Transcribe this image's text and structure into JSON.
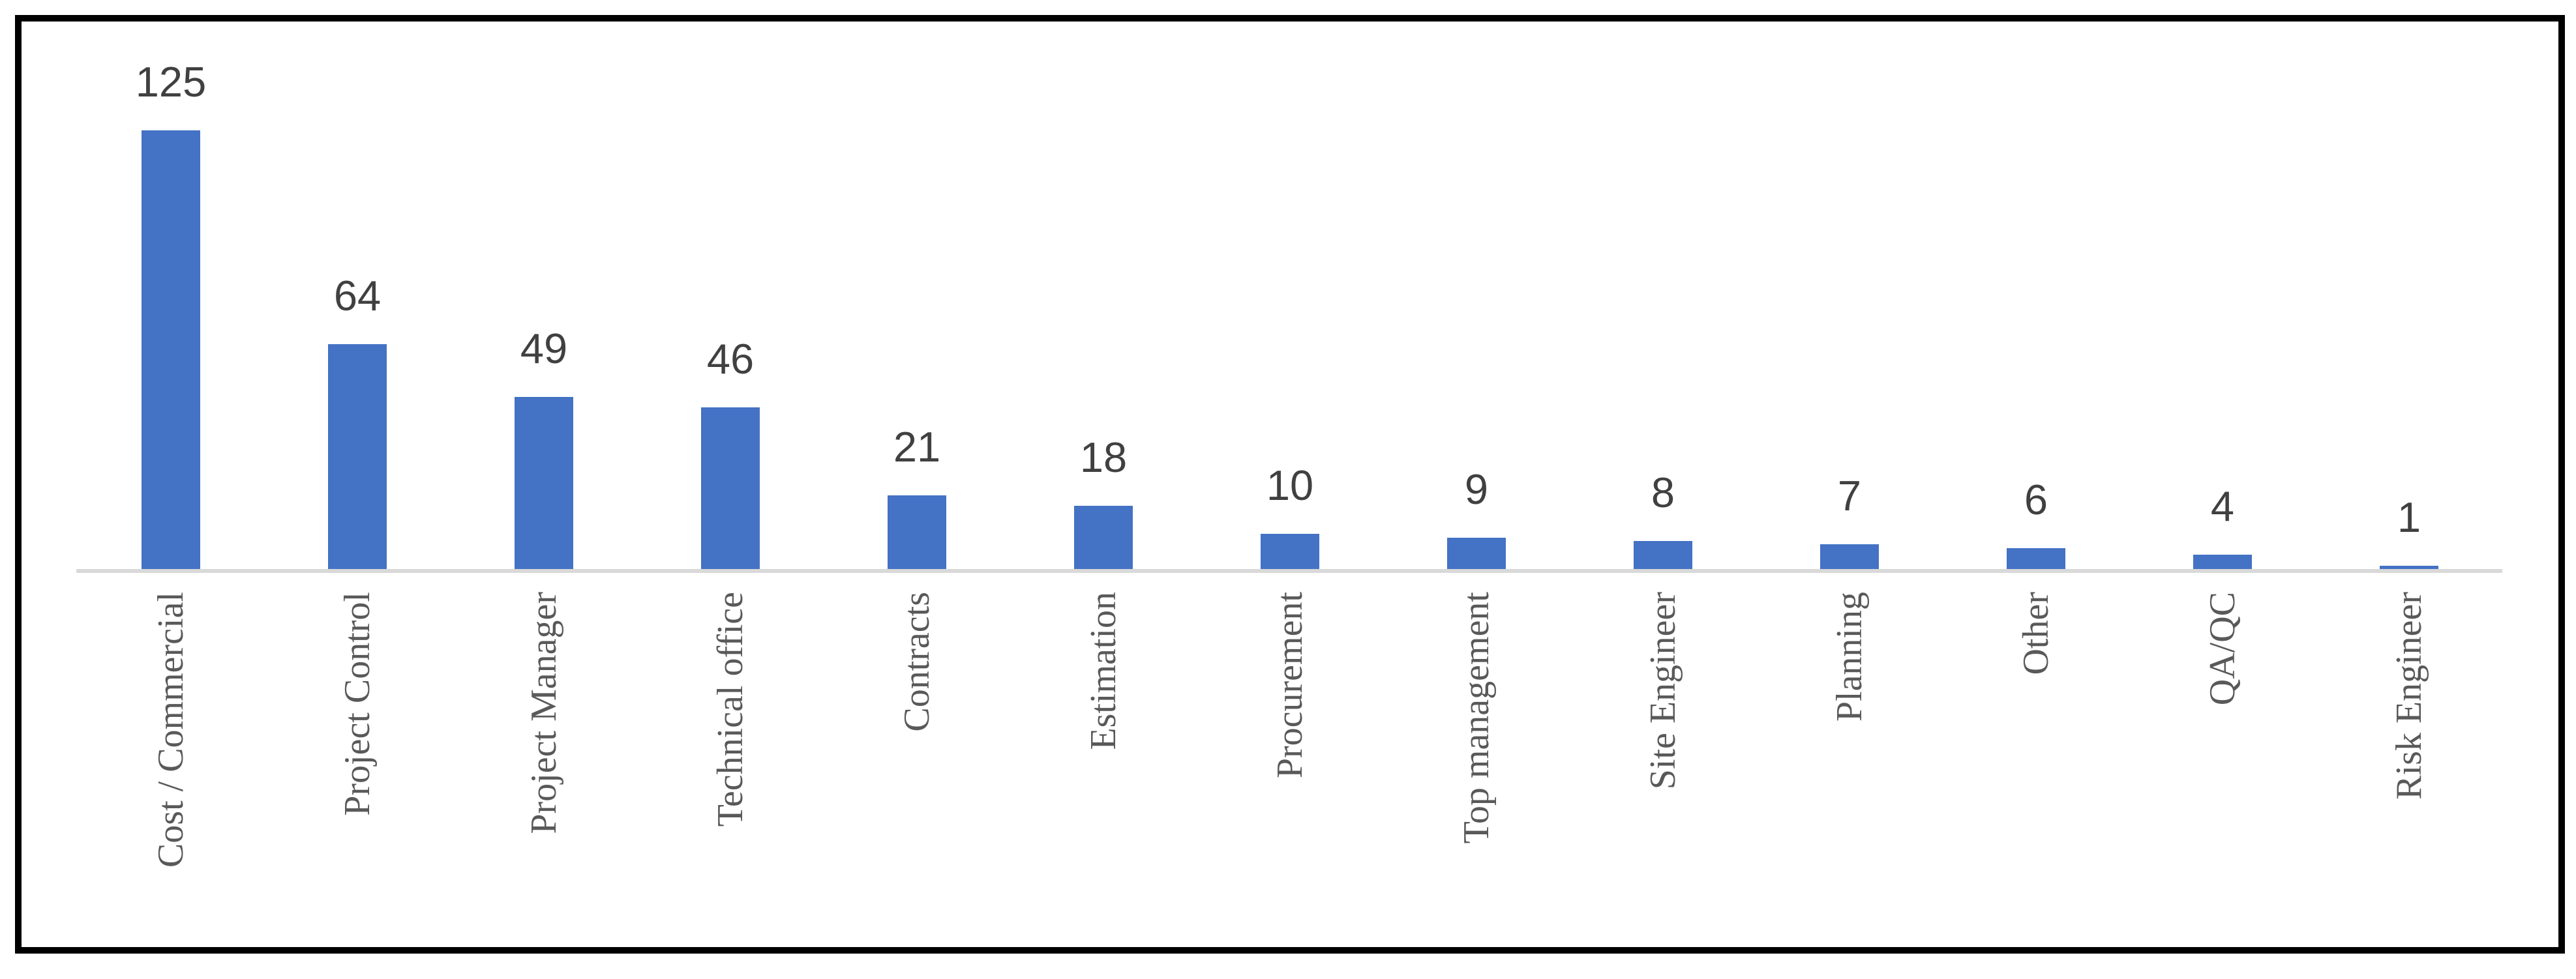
{
  "chart_data": {
    "type": "bar",
    "categories": [
      "Cost / Commercial",
      "Project Control",
      "Project Manager",
      "Technical office",
      "Contracts",
      "Estimation",
      "Procurement",
      "Top management",
      "Site Engineer",
      "Planning",
      "Other",
      "QA/QC",
      "Risk Engineer"
    ],
    "values": [
      125,
      64,
      49,
      46,
      21,
      18,
      10,
      9,
      8,
      7,
      6,
      4,
      1
    ],
    "title": "",
    "xlabel": "",
    "ylabel": "",
    "ylim": [
      0,
      125
    ],
    "grid": false,
    "legend": false,
    "data_labels": "above bars",
    "x_label_rotation_deg": 90,
    "bar_color": "#4472C4",
    "axis_line_color": "#D9D9D9",
    "value_label_color": "#404040",
    "category_label_color": "#595959",
    "frame_border_color": "#000000"
  }
}
